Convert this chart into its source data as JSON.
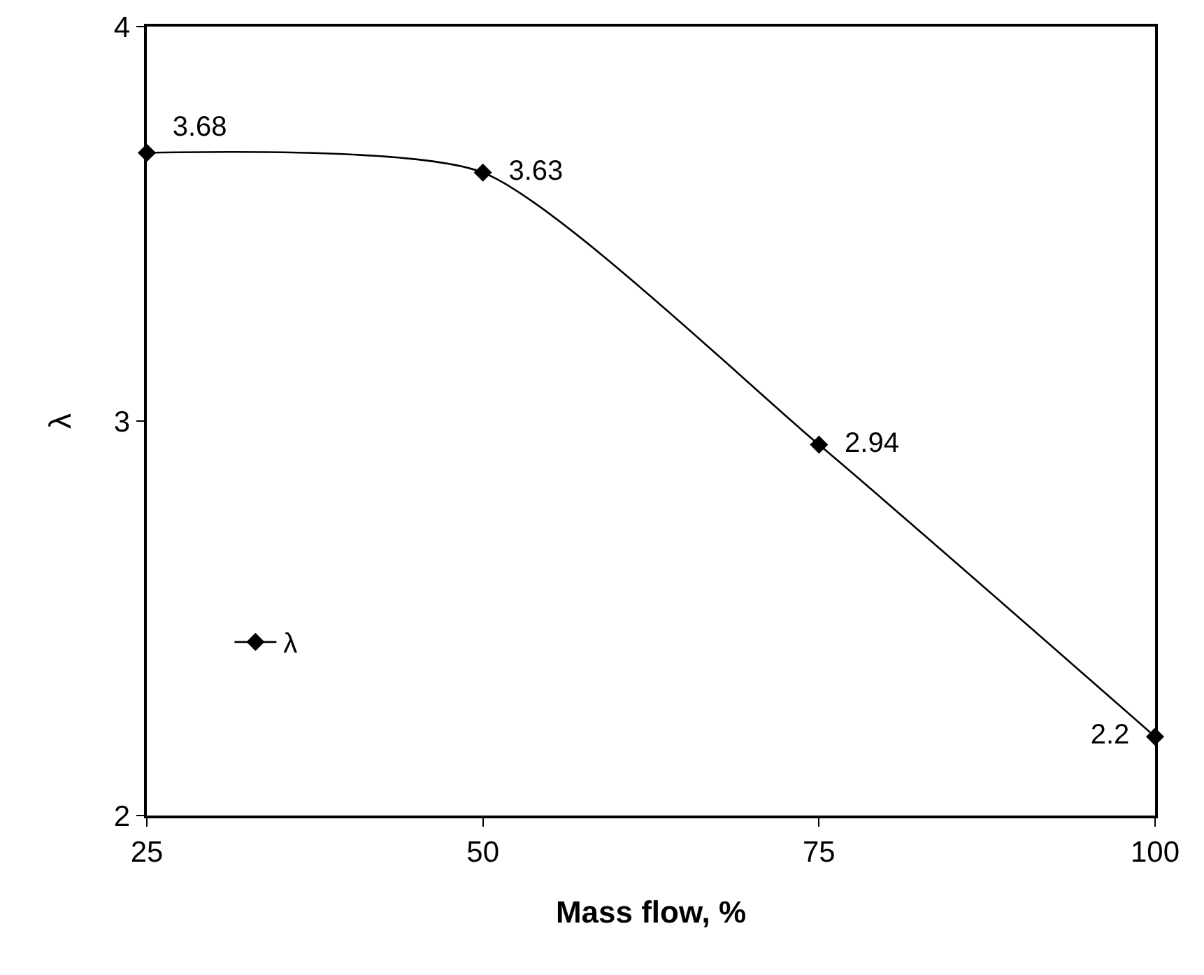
{
  "chart_data": {
    "type": "line",
    "xlabel": "Mass flow, %",
    "ylabel": "λ",
    "x": [
      25,
      50,
      75,
      100
    ],
    "series": [
      {
        "name": "λ",
        "color": "#000000",
        "values": [
          3.68,
          3.63,
          2.94,
          2.2
        ]
      }
    ],
    "xlim": [
      25,
      100
    ],
    "xticks": [
      25,
      50,
      75,
      100
    ],
    "ylim": [
      2,
      4
    ],
    "yticks": [
      2,
      3,
      4
    ],
    "grid": false,
    "legend": "bottom left",
    "marker": "diamond",
    "line_style": "solid",
    "data_labels": true
  }
}
